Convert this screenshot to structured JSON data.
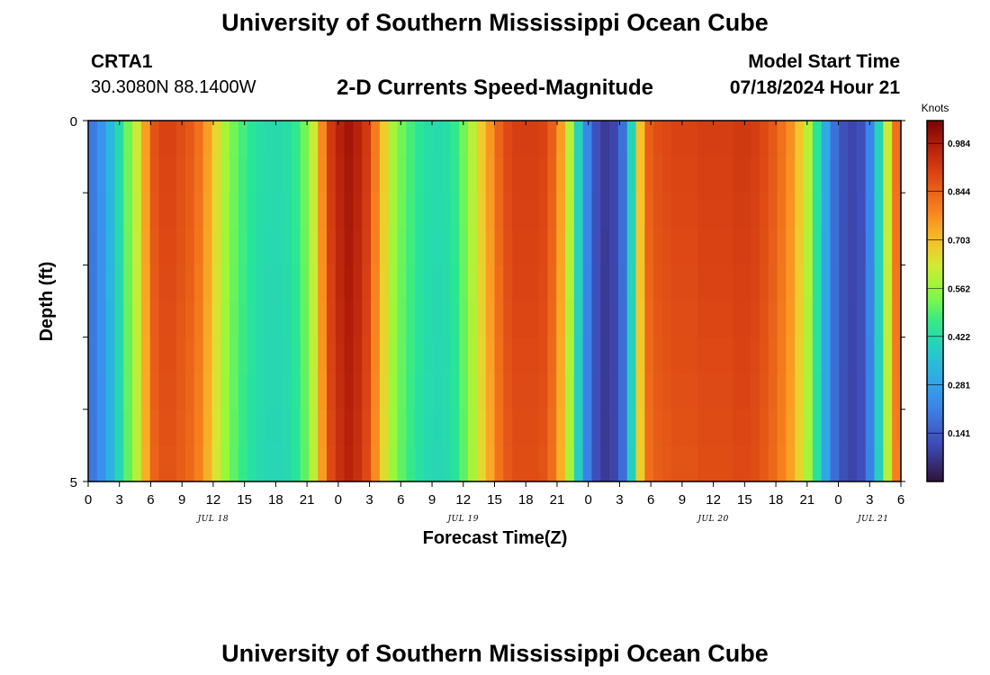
{
  "header": {
    "title": "University of Southern Mississippi Ocean Cube",
    "station": "CRTA1",
    "coords": "30.3080N  88.1400W",
    "subtitle": "2-D Currents Speed-Magnitude",
    "model_label": "Model Start Time",
    "model_time": "07/18/2024 Hour 21"
  },
  "footer": {
    "title": "University of Southern Mississippi Ocean Cube"
  },
  "chart_data": {
    "type": "heatmap",
    "xlabel": "Forecast Time(Z)",
    "ylabel": "Depth (ft)",
    "x_tick_labels": [
      "0",
      "3",
      "6",
      "9",
      "12",
      "15",
      "18",
      "21",
      "0",
      "3",
      "6",
      "9",
      "12",
      "15",
      "18",
      "21",
      "0",
      "3",
      "6",
      "9",
      "12",
      "15",
      "18",
      "21",
      "0",
      "3",
      "6"
    ],
    "day_labels": [
      "JUL 18",
      "JUL 19",
      "JUL 20",
      "JUL 21"
    ],
    "y_tick_labels": [
      "0",
      "5"
    ],
    "ylim": [
      0,
      5
    ],
    "colorbar": {
      "units": "Knots",
      "min": 0.0,
      "max": 1.05,
      "labels": [
        "0.984",
        "0.844",
        "0.703",
        "0.562",
        "0.422",
        "0.281",
        "0.141"
      ]
    },
    "depth_rows": [
      0.25,
      0.75,
      1.25,
      1.75,
      2.25,
      2.75,
      3.25,
      3.75,
      4.25,
      4.75
    ],
    "surface_speed": [
      0.2,
      0.25,
      0.33,
      0.42,
      0.52,
      0.62,
      0.75,
      0.87,
      0.9,
      0.9,
      0.88,
      0.86,
      0.82,
      0.75,
      0.66,
      0.58,
      0.52,
      0.48,
      0.45,
      0.43,
      0.42,
      0.42,
      0.43,
      0.46,
      0.52,
      0.62,
      0.78,
      0.92,
      0.97,
      1.0,
      0.97,
      0.92,
      0.8,
      0.68,
      0.58,
      0.52,
      0.48,
      0.45,
      0.43,
      0.42,
      0.43,
      0.46,
      0.52,
      0.6,
      0.68,
      0.76,
      0.84,
      0.89,
      0.91,
      0.91,
      0.91,
      0.9,
      0.85,
      0.75,
      0.6,
      0.4,
      0.22,
      0.12,
      0.08,
      0.1,
      0.18,
      0.4,
      0.7,
      0.85,
      0.88,
      0.89,
      0.9,
      0.9,
      0.9,
      0.91,
      0.91,
      0.91,
      0.91,
      0.92,
      0.92,
      0.91,
      0.89,
      0.86,
      0.82,
      0.77,
      0.69,
      0.6,
      0.45,
      0.3,
      0.18,
      0.12,
      0.1,
      0.12,
      0.22,
      0.4,
      0.62,
      0.82
    ]
  }
}
